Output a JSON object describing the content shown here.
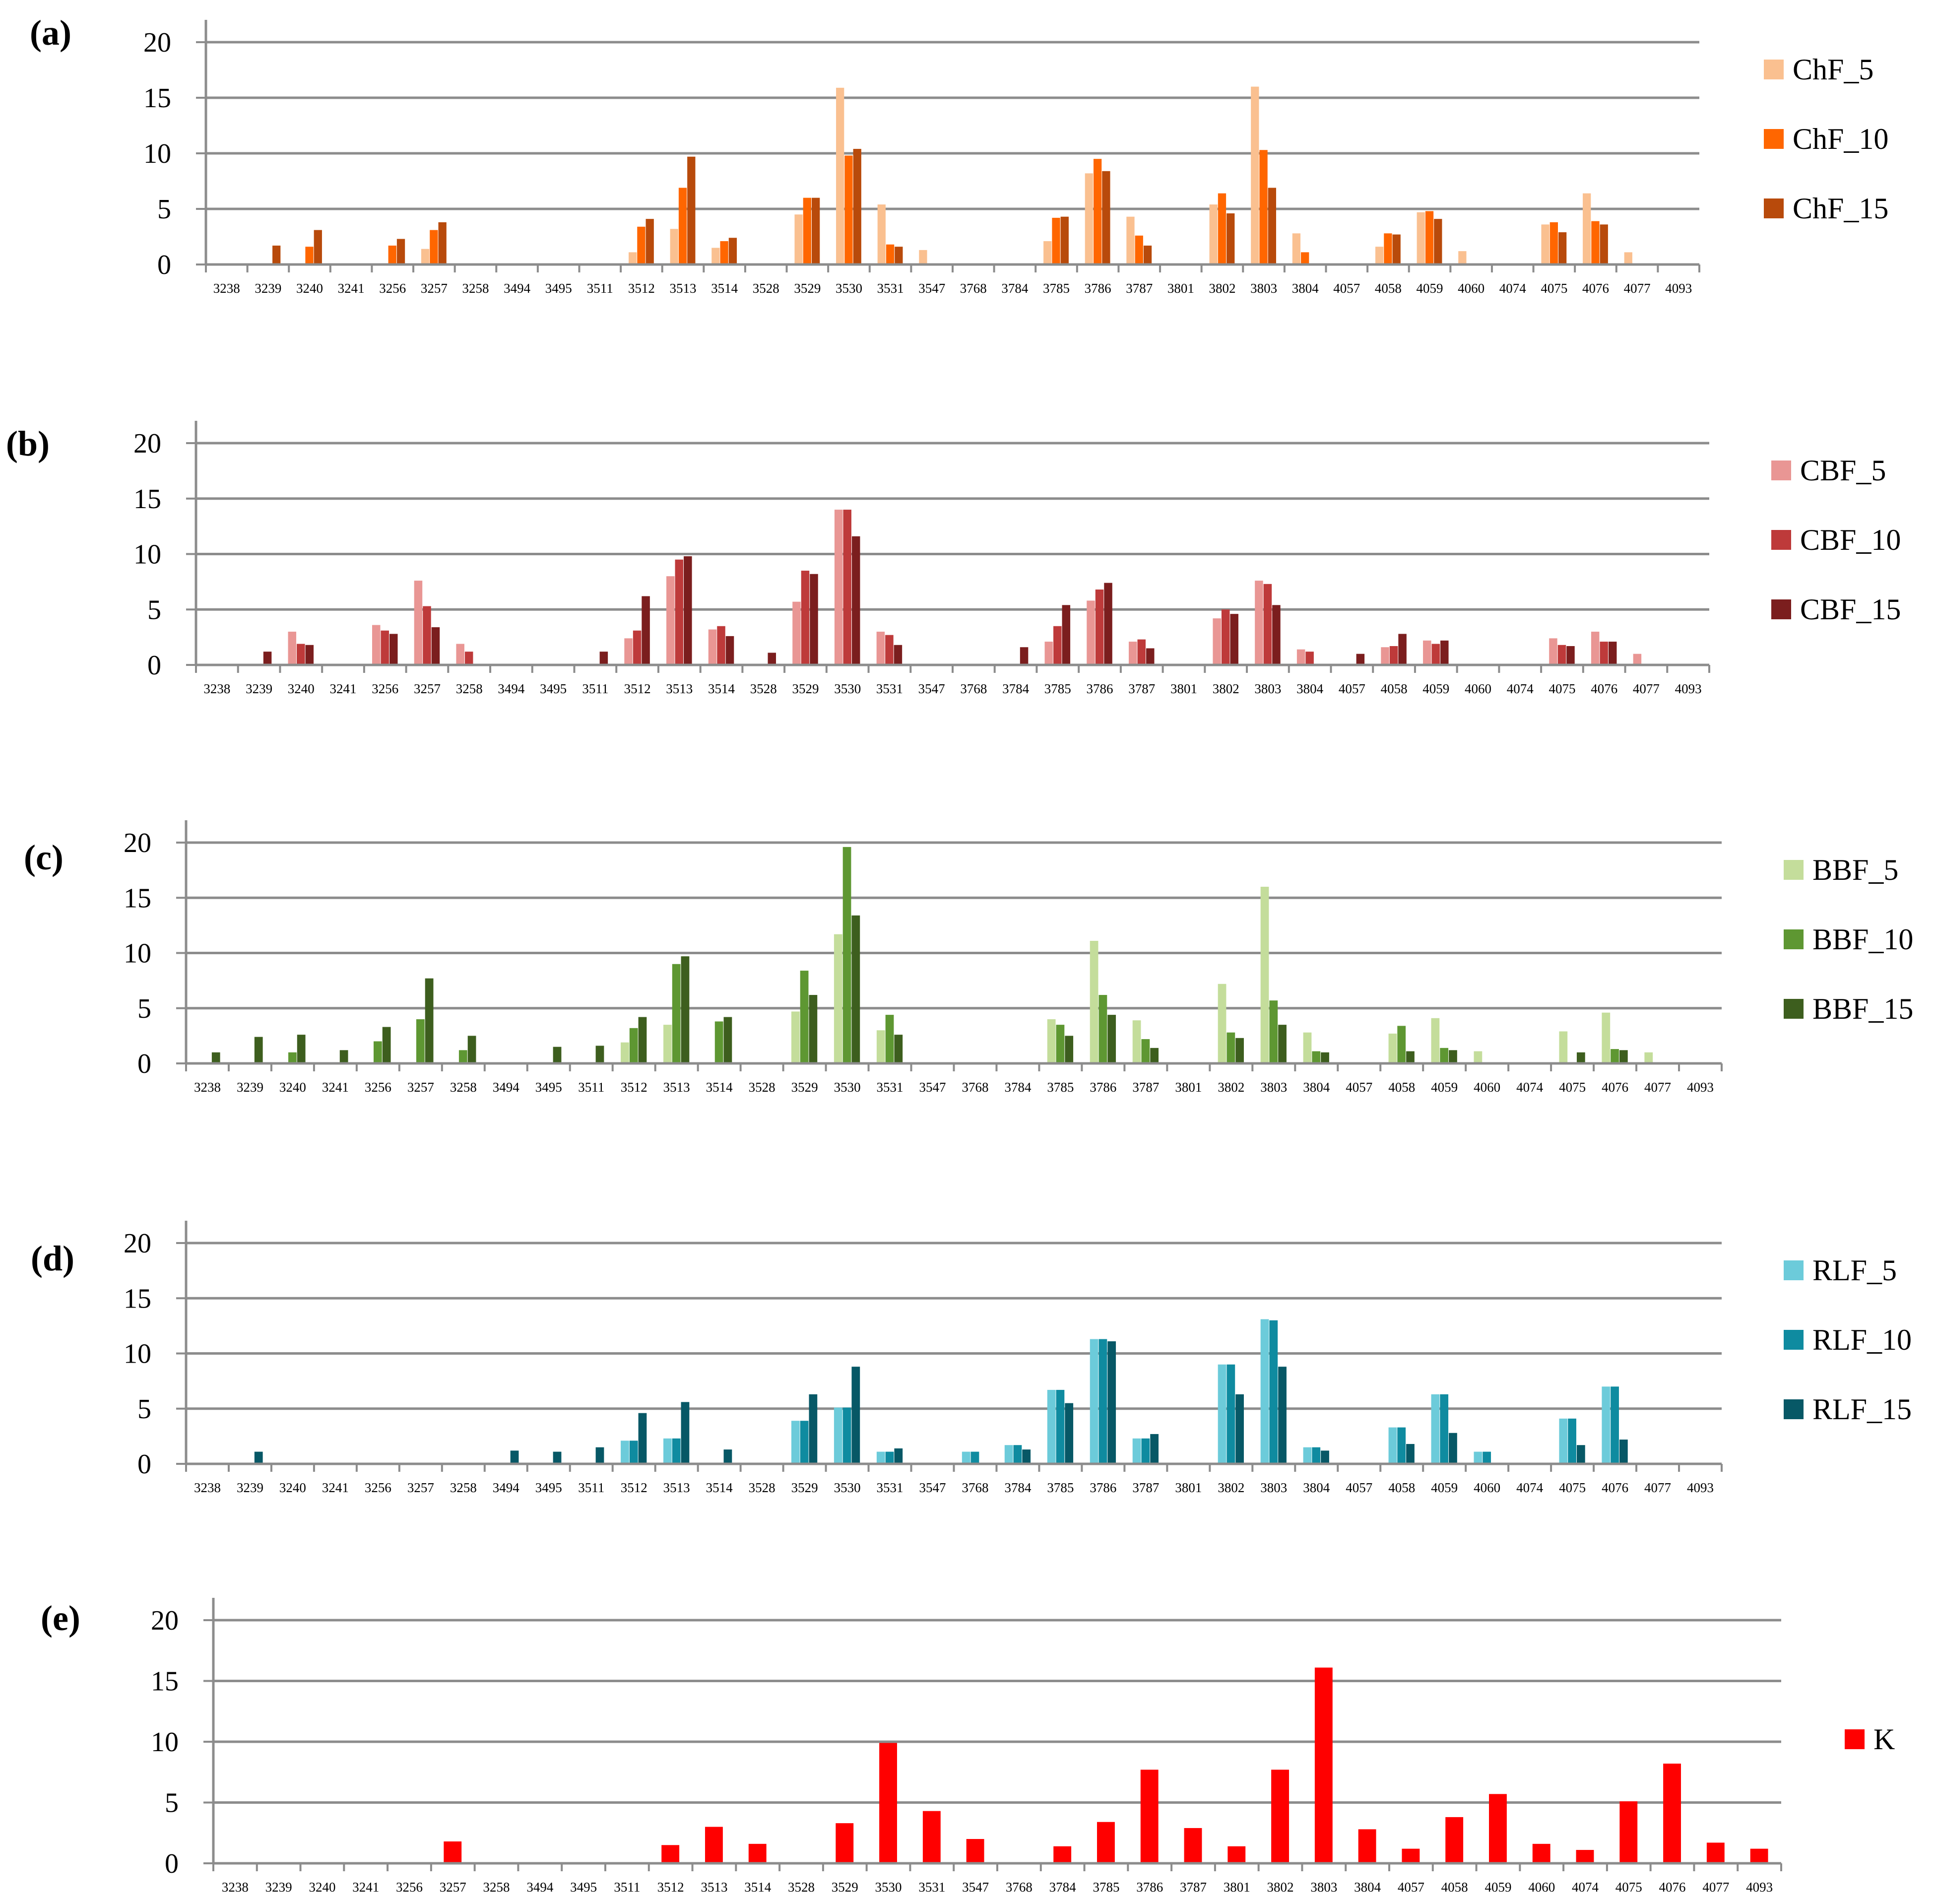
{
  "figure": {
    "panels": [
      "a",
      "b",
      "c",
      "d",
      "e"
    ]
  },
  "chart_data": [
    {
      "type": "bar",
      "panel_label": "(a)",
      "categories": [
        "3238",
        "3239",
        "3240",
        "3241",
        "3256",
        "3257",
        "3258",
        "3494",
        "3495",
        "3511",
        "3512",
        "3513",
        "3514",
        "3528",
        "3529",
        "3530",
        "3531",
        "3547",
        "3768",
        "3784",
        "3785",
        "3786",
        "3787",
        "3801",
        "3802",
        "3803",
        "3804",
        "4057",
        "4058",
        "4059",
        "4060",
        "4074",
        "4075",
        "4076",
        "4077",
        "4093"
      ],
      "ylim": [
        0,
        20
      ],
      "yticks": [
        "0",
        "5",
        "10",
        "15",
        "20"
      ],
      "grid": true,
      "legend_position": "right",
      "series": [
        {
          "name": "ChF_5",
          "color": "#FAC090",
          "values": [
            0,
            0,
            0,
            0,
            0,
            1.4,
            0,
            0,
            0,
            0,
            1.1,
            3.2,
            1.5,
            0,
            4.5,
            15.9,
            5.4,
            1.3,
            0,
            0,
            2.1,
            8.2,
            4.3,
            0,
            5.4,
            16.0,
            2.8,
            0,
            1.6,
            4.7,
            1.2,
            0,
            3.6,
            6.4,
            1.1,
            0
          ]
        },
        {
          "name": "ChF_10",
          "color": "#FF6600",
          "values": [
            0,
            0,
            1.6,
            0,
            1.7,
            3.1,
            0,
            0,
            0,
            0,
            3.4,
            6.9,
            2.1,
            0,
            6.0,
            9.8,
            1.8,
            0,
            0,
            0,
            4.2,
            9.5,
            2.6,
            0,
            6.4,
            10.3,
            1.1,
            0,
            2.8,
            4.8,
            0,
            0,
            3.8,
            3.9,
            0,
            0
          ]
        },
        {
          "name": "ChF_15",
          "color": "#B84A0B",
          "values": [
            0,
            1.7,
            3.1,
            0,
            2.3,
            3.8,
            0,
            0,
            0,
            0,
            4.1,
            9.7,
            2.4,
            0,
            6.0,
            10.4,
            1.6,
            0,
            0,
            0,
            4.3,
            8.4,
            1.7,
            0,
            4.6,
            6.9,
            0,
            0,
            2.7,
            4.1,
            0,
            0,
            2.9,
            3.6,
            0,
            0
          ]
        }
      ]
    },
    {
      "type": "bar",
      "panel_label": "(b)",
      "categories": [
        "3238",
        "3239",
        "3240",
        "3241",
        "3256",
        "3257",
        "3258",
        "3494",
        "3495",
        "3511",
        "3512",
        "3513",
        "3514",
        "3528",
        "3529",
        "3530",
        "3531",
        "3547",
        "3768",
        "3784",
        "3785",
        "3786",
        "3787",
        "3801",
        "3802",
        "3803",
        "3804",
        "4057",
        "4058",
        "4059",
        "4060",
        "4074",
        "4075",
        "4076",
        "4077",
        "4093"
      ],
      "ylim": [
        0,
        20
      ],
      "yticks": [
        "0",
        "5",
        "10",
        "15",
        "20"
      ],
      "grid": true,
      "legend_position": "right",
      "series": [
        {
          "name": "CBF_5",
          "color": "#E99694",
          "values": [
            0,
            0,
            3.0,
            0,
            3.6,
            7.6,
            1.9,
            0,
            0,
            0,
            2.4,
            8.0,
            3.2,
            0,
            5.7,
            14.0,
            3.0,
            0,
            0,
            0,
            2.1,
            5.8,
            2.1,
            0,
            4.2,
            7.6,
            1.4,
            0,
            1.6,
            2.2,
            0,
            0,
            2.4,
            3.0,
            1.0,
            0
          ]
        },
        {
          "name": "CBF_10",
          "color": "#BE3A3A",
          "values": [
            0,
            0,
            1.9,
            0,
            3.1,
            5.3,
            1.2,
            0,
            0,
            0,
            3.1,
            9.5,
            3.5,
            0,
            8.5,
            14.0,
            2.7,
            0,
            0,
            0,
            3.5,
            6.8,
            2.3,
            0,
            5.0,
            7.3,
            1.2,
            0,
            1.7,
            1.9,
            0,
            0,
            1.8,
            2.1,
            0,
            0
          ]
        },
        {
          "name": "CBF_15",
          "color": "#7B1E1E",
          "values": [
            0,
            1.2,
            1.8,
            0,
            2.8,
            3.4,
            0,
            0,
            0,
            1.2,
            6.2,
            9.8,
            2.6,
            1.1,
            8.2,
            11.6,
            1.8,
            0,
            0,
            1.6,
            5.4,
            7.4,
            1.5,
            0,
            4.6,
            5.4,
            0,
            1.0,
            2.8,
            2.2,
            0,
            0,
            1.7,
            2.1,
            0,
            0
          ]
        }
      ]
    },
    {
      "type": "bar",
      "panel_label": "(c)",
      "categories": [
        "3238",
        "3239",
        "3240",
        "3241",
        "3256",
        "3257",
        "3258",
        "3494",
        "3495",
        "3511",
        "3512",
        "3513",
        "3514",
        "3528",
        "3529",
        "3530",
        "3531",
        "3547",
        "3768",
        "3784",
        "3785",
        "3786",
        "3787",
        "3801",
        "3802",
        "3803",
        "3804",
        "4057",
        "4058",
        "4059",
        "4060",
        "4074",
        "4075",
        "4076",
        "4077",
        "4093"
      ],
      "ylim": [
        0,
        20
      ],
      "yticks": [
        "0",
        "5",
        "10",
        "15",
        "20"
      ],
      "grid": true,
      "legend_position": "right",
      "series": [
        {
          "name": "BBF_5",
          "color": "#C4DD9B",
          "values": [
            0,
            0,
            0,
            0,
            0,
            0,
            0,
            0,
            0,
            0,
            1.9,
            3.5,
            0,
            0,
            4.7,
            11.7,
            3.0,
            0,
            0,
            0,
            4.0,
            11.1,
            3.9,
            0,
            7.2,
            16.0,
            2.8,
            0,
            2.7,
            4.1,
            1.1,
            0,
            2.9,
            4.6,
            1.0,
            0
          ]
        },
        {
          "name": "BBF_10",
          "color": "#5E9732",
          "values": [
            0,
            0,
            1.0,
            0,
            2.0,
            4.0,
            1.2,
            0,
            0,
            0,
            3.2,
            9.0,
            3.8,
            0,
            8.4,
            19.6,
            4.4,
            0,
            0,
            0,
            3.5,
            6.2,
            2.2,
            0,
            2.8,
            5.7,
            1.1,
            0,
            3.4,
            1.4,
            0,
            0,
            0,
            1.3,
            0,
            0
          ]
        },
        {
          "name": "BBF_15",
          "color": "#3D5E1E",
          "values": [
            1.0,
            2.4,
            2.6,
            1.2,
            3.3,
            7.7,
            2.5,
            0,
            1.5,
            1.6,
            4.2,
            9.7,
            4.2,
            0,
            6.2,
            13.4,
            2.6,
            0,
            0,
            0,
            2.5,
            4.4,
            1.4,
            0,
            2.3,
            3.5,
            1.0,
            0,
            1.1,
            1.2,
            0,
            0,
            1.0,
            1.2,
            0,
            0
          ]
        }
      ]
    },
    {
      "type": "bar",
      "panel_label": "(d)",
      "categories": [
        "3238",
        "3239",
        "3240",
        "3241",
        "3256",
        "3257",
        "3258",
        "3494",
        "3495",
        "3511",
        "3512",
        "3513",
        "3514",
        "3528",
        "3529",
        "3530",
        "3531",
        "3547",
        "3768",
        "3784",
        "3785",
        "3786",
        "3787",
        "3801",
        "3802",
        "3803",
        "3804",
        "4057",
        "4058",
        "4059",
        "4060",
        "4074",
        "4075",
        "4076",
        "4077",
        "4093"
      ],
      "ylim": [
        0,
        20
      ],
      "yticks": [
        "0",
        "5",
        "10",
        "15",
        "20"
      ],
      "grid": true,
      "legend_position": "right",
      "series": [
        {
          "name": "RLF_5",
          "color": "#6CCBDA",
          "values": [
            0,
            0,
            0,
            0,
            0,
            0,
            0,
            0,
            0,
            0,
            2.1,
            2.3,
            0,
            0,
            3.9,
            5.1,
            1.1,
            0,
            1.1,
            1.7,
            6.7,
            11.3,
            2.3,
            0,
            9.0,
            13.1,
            1.5,
            0,
            3.3,
            6.3,
            1.1,
            0,
            4.1,
            7.0,
            0,
            0
          ]
        },
        {
          "name": "RLF_10",
          "color": "#0F8BA0",
          "values": [
            0,
            0,
            0,
            0,
            0,
            0,
            0,
            0,
            0,
            0,
            2.1,
            2.3,
            0,
            0,
            3.9,
            5.1,
            1.1,
            0,
            1.1,
            1.7,
            6.7,
            11.3,
            2.3,
            0,
            9.0,
            13.0,
            1.5,
            0,
            3.3,
            6.3,
            1.1,
            0,
            4.1,
            7.0,
            0,
            0
          ]
        },
        {
          "name": "RLF_15",
          "color": "#075866",
          "values": [
            0,
            1.1,
            0,
            0,
            0,
            0,
            0,
            1.2,
            1.1,
            1.5,
            4.6,
            5.6,
            1.3,
            0,
            6.3,
            8.8,
            1.4,
            0,
            0,
            1.3,
            5.5,
            11.1,
            2.7,
            0,
            6.3,
            8.8,
            1.2,
            0,
            1.8,
            2.8,
            0,
            0,
            1.7,
            2.2,
            0,
            0
          ]
        }
      ]
    },
    {
      "type": "bar",
      "panel_label": "(e)",
      "categories": [
        "3238",
        "3239",
        "3240",
        "3241",
        "3256",
        "3257",
        "3258",
        "3494",
        "3495",
        "3511",
        "3512",
        "3513",
        "3514",
        "3528",
        "3529",
        "3530",
        "3531",
        "3547",
        "3768",
        "3784",
        "3785",
        "3786",
        "3787",
        "3801",
        "3802",
        "3803",
        "3804",
        "4057",
        "4058",
        "4059",
        "4060",
        "4074",
        "4075",
        "4076",
        "4077",
        "4093"
      ],
      "ylim": [
        0,
        20
      ],
      "yticks": [
        "0",
        "5",
        "10",
        "15",
        "20"
      ],
      "grid": true,
      "legend_position": "right",
      "series": [
        {
          "name": "K",
          "color": "#FF0000",
          "values": [
            0,
            0,
            0,
            0,
            0,
            1.8,
            0,
            0,
            0,
            0,
            1.5,
            3.0,
            1.6,
            0,
            3.3,
            9.9,
            4.3,
            2.0,
            0,
            1.4,
            3.4,
            7.7,
            2.9,
            1.4,
            7.7,
            16.1,
            2.8,
            1.2,
            3.8,
            5.7,
            1.6,
            1.1,
            5.1,
            8.2,
            1.7,
            1.2
          ]
        }
      ]
    }
  ]
}
